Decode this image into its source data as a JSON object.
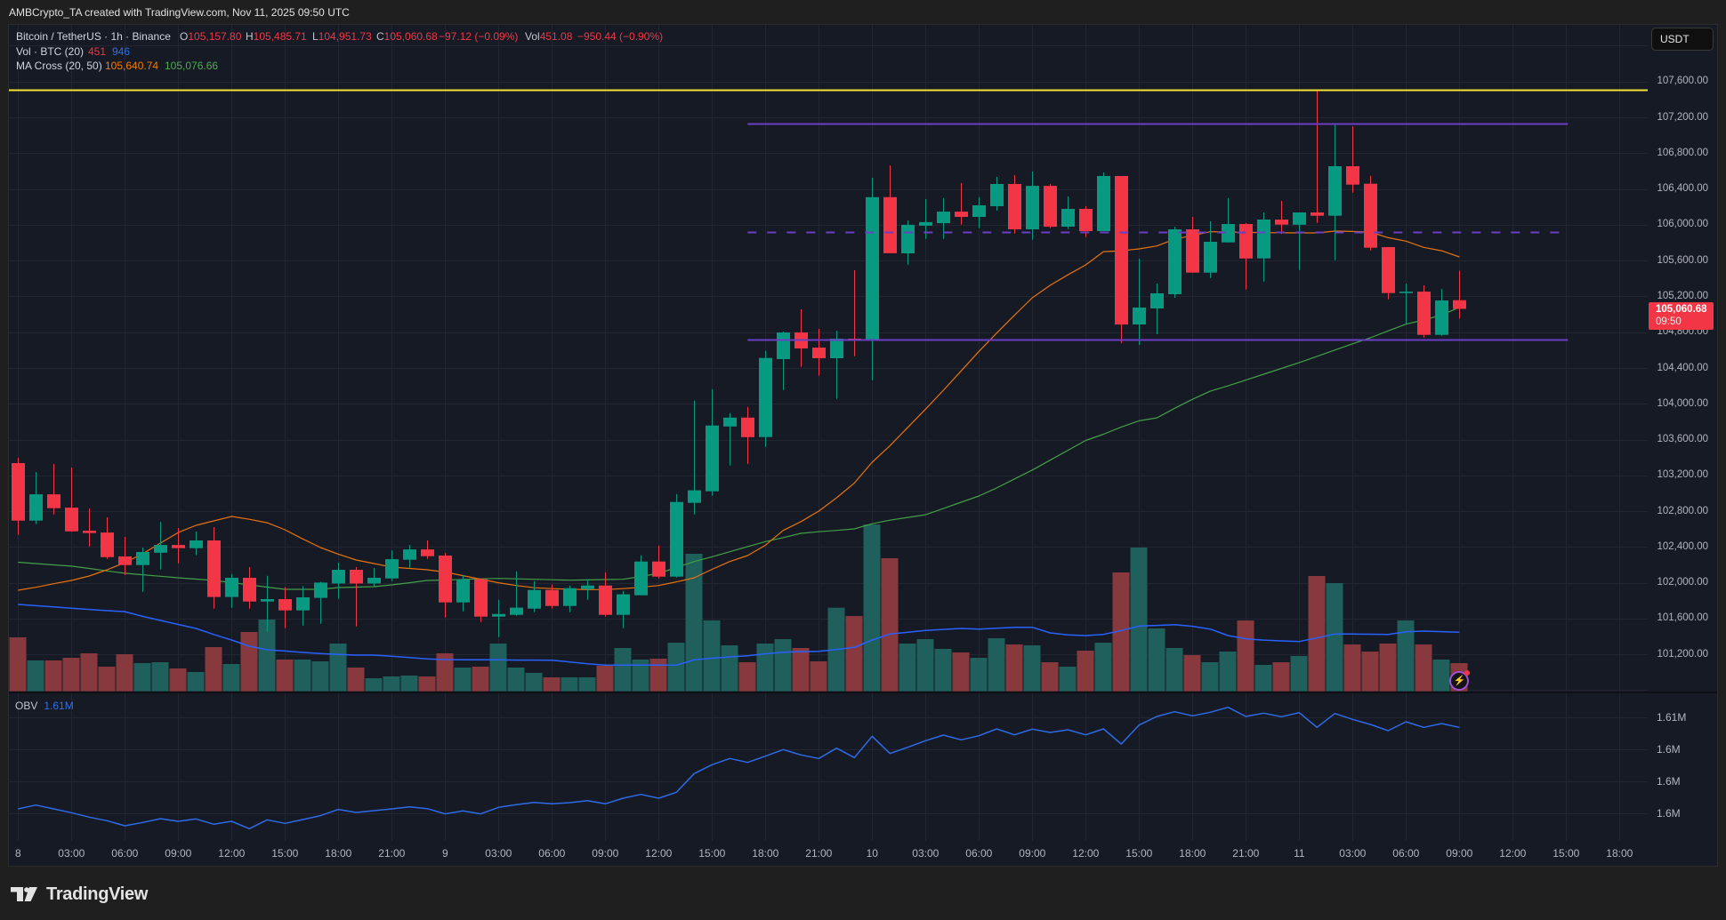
{
  "header": {
    "attribution": "AMBCrypto_TA created with TradingView.com, Nov 11, 2025 09:50 UTC"
  },
  "legend": {
    "symbol": "Bitcoin / TetherUS · 1h · Binance",
    "ohlc": {
      "o_label": "O",
      "o": "105,157.80",
      "h_label": "H",
      "h": "105,485.71",
      "l_label": "L",
      "l": "104,951.73",
      "c_label": "C",
      "c": "105,060.68",
      "change": "−97.12 (−0.09%)",
      "vol_label": "Vol",
      "vol": "451.08",
      "vol_change": "−950.44 (−0.90%)"
    },
    "volume": {
      "label": "Vol · BTC (20)",
      "value": "451",
      "ma": "946"
    },
    "ma_cross": {
      "label": "MA Cross (20, 50)",
      "ma20": "105,640.74",
      "ma50": "105,076.66"
    }
  },
  "price_axis": {
    "currency_button": "USDT",
    "last_price": "105,060.68",
    "countdown": "09:50"
  },
  "obv": {
    "label": "OBV",
    "value": "1.61M"
  },
  "status_icon": {
    "glyph": "⚡"
  },
  "footer": {
    "logo_text": "TradingView"
  },
  "colors": {
    "up": "#089981",
    "down": "#f23645",
    "vol_up": "#1f5f5c",
    "vol_down": "#87393d",
    "ma20": "#e8730c",
    "ma50": "#43a047",
    "vol_ma": "#2962ff",
    "obv": "#2f6be6",
    "grid": "#232632",
    "chart_bg": "#161a25",
    "page_bg": "#1f1f1f",
    "last_price_tag": "#f23645"
  },
  "chart_data": {
    "type": "candlestick",
    "title": "Bitcoin / TetherUS · 1h · Binance",
    "interval": "1h",
    "xlim": [
      -0.5,
      91.6
    ],
    "x_tick_every": 3,
    "x_tick_labels": [
      "8",
      "03:00",
      "06:00",
      "09:00",
      "12:00",
      "15:00",
      "18:00",
      "21:00",
      "9",
      "03:00",
      "06:00",
      "09:00",
      "12:00",
      "15:00",
      "18:00",
      "21:00",
      "10",
      "03:00",
      "06:00",
      "09:00",
      "12:00",
      "15:00",
      "18:00",
      "21:00",
      "11",
      "03:00",
      "06:00",
      "09:00",
      "12:00",
      "15:00",
      "18:00"
    ],
    "y_tick_labels": [
      "107,600.00",
      "107,200.00",
      "106,800.00",
      "106,400.00",
      "106,000.00",
      "105,600.00",
      "105,200.00",
      "104,800.00",
      "104,400.00",
      "104,000.00",
      "103,600.00",
      "103,200.00",
      "102,800.00",
      "102,400.00",
      "102,000.00",
      "101,600.00",
      "101,200.00"
    ],
    "price_pane": {
      "ylim": [
        100775,
        108233
      ],
      "grid_step": 400,
      "last_price": 105060.68,
      "ohlc_order": [
        "open",
        "high",
        "low",
        "close"
      ],
      "ohlc": [
        [
          103337,
          103397,
          102535,
          102694
        ],
        [
          102695,
          103238,
          102655,
          102989
        ],
        [
          102989,
          103327,
          102764,
          102834
        ],
        [
          102840,
          103287,
          102570,
          102575
        ],
        [
          102582,
          102830,
          102407,
          102555
        ],
        [
          102562,
          102731,
          102268,
          102287
        ],
        [
          102294,
          102513,
          102089,
          102198
        ],
        [
          102198,
          102393,
          101900,
          102344
        ],
        [
          102337,
          102681,
          102149,
          102423
        ],
        [
          102423,
          102612,
          102218,
          102387
        ],
        [
          102387,
          102572,
          102308,
          102473
        ],
        [
          102473,
          102622,
          101711,
          101841
        ],
        [
          101841,
          102099,
          101721,
          102056
        ],
        [
          102056,
          102175,
          101711,
          101791
        ],
        [
          101791,
          102079,
          101453,
          101818
        ],
        [
          101818,
          101953,
          101493,
          101692
        ],
        [
          101692,
          101963,
          101523,
          101838
        ],
        [
          101831,
          102012,
          101543,
          102002
        ],
        [
          101992,
          102225,
          101821,
          102145
        ],
        [
          102145,
          102175,
          101513,
          101992
        ],
        [
          101992,
          102165,
          101963,
          102056
        ],
        [
          102049,
          102363,
          102019,
          102264
        ],
        [
          102258,
          102423,
          102169,
          102373
        ],
        [
          102373,
          102473,
          102268,
          102298
        ],
        [
          102304,
          102334,
          101612,
          101781
        ],
        [
          101781,
          102089,
          101682,
          102039
        ],
        [
          102039,
          102049,
          101562,
          101622
        ],
        [
          101622,
          101811,
          101394,
          101652
        ],
        [
          101642,
          102129,
          101632,
          101722
        ],
        [
          101711,
          102019,
          101672,
          101920
        ],
        [
          101920,
          101980,
          101711,
          101741
        ],
        [
          101741,
          101970,
          101672,
          101940
        ],
        [
          101930,
          102039,
          101811,
          101970
        ],
        [
          101970,
          102119,
          101622,
          101642
        ],
        [
          101642,
          101910,
          101493,
          101871
        ],
        [
          101861,
          102308,
          101861,
          102238
        ],
        [
          102238,
          102417,
          102049,
          102069
        ],
        [
          102069,
          102993,
          102059,
          102903
        ],
        [
          102893,
          104035,
          102764,
          103033
        ],
        [
          103022,
          104164,
          102973,
          103757
        ],
        [
          103747,
          103896,
          103310,
          103846
        ],
        [
          103846,
          103966,
          103330,
          103628
        ],
        [
          103628,
          104591,
          103519,
          104512
        ],
        [
          104499,
          104807,
          104154,
          104797
        ],
        [
          104797,
          105055,
          104413,
          104618
        ],
        [
          104628,
          104837,
          104313,
          104509
        ],
        [
          104509,
          104817,
          104055,
          104727
        ],
        [
          104727,
          105492,
          104532,
          104717
        ],
        [
          104717,
          106525,
          104264,
          106308
        ],
        [
          106308,
          106664,
          105681,
          105681
        ],
        [
          105681,
          106049,
          105554,
          106000
        ],
        [
          105989,
          106287,
          105842,
          106029
        ],
        [
          106018,
          106297,
          105842,
          106147
        ],
        [
          106147,
          106466,
          106001,
          106088
        ],
        [
          106088,
          106307,
          105962,
          106217
        ],
        [
          106207,
          106535,
          106157,
          106455
        ],
        [
          106455,
          106555,
          105902,
          105949
        ],
        [
          105949,
          106594,
          105833,
          106435
        ],
        [
          106435,
          106455,
          105962,
          105978
        ],
        [
          105978,
          106316,
          105952,
          106177
        ],
        [
          106177,
          106207,
          105862,
          105929
        ],
        [
          105929,
          106584,
          105929,
          106545
        ],
        [
          106545,
          106545,
          104677,
          104886
        ],
        [
          104886,
          105621,
          104657,
          105075
        ],
        [
          105065,
          105343,
          104777,
          105234
        ],
        [
          105224,
          105978,
          105184,
          105949
        ],
        [
          105949,
          106088,
          105465,
          105465
        ],
        [
          105465,
          106038,
          105405,
          105810
        ],
        [
          105803,
          106297,
          105803,
          106009
        ],
        [
          106009,
          106019,
          105276,
          105624
        ],
        [
          105624,
          106138,
          105366,
          106058
        ],
        [
          106058,
          106267,
          105896,
          106001
        ],
        [
          106001,
          106138,
          105495,
          106138
        ],
        [
          106138,
          107500,
          106021,
          106101
        ],
        [
          106101,
          107130,
          105604,
          106654
        ],
        [
          106654,
          107100,
          106359,
          106448
        ],
        [
          106458,
          106547,
          105713,
          105743
        ],
        [
          105750,
          105750,
          105167,
          105237
        ],
        [
          105237,
          105343,
          104889,
          105253
        ],
        [
          105253,
          105323,
          104740,
          104770
        ],
        [
          104770,
          105283,
          104760,
          105154
        ],
        [
          105157.8,
          105485.71,
          104951.73,
          105060.68
        ]
      ],
      "ma20": [
        101917,
        101950,
        101990,
        102026,
        102076,
        102145,
        102225,
        102324,
        102443,
        102562,
        102642,
        102692,
        102741,
        102710,
        102671,
        102592,
        102490,
        102394,
        102320,
        102255,
        102215,
        102175,
        102160,
        102145,
        102120,
        102080,
        102040,
        102000,
        101970,
        101945,
        101935,
        101928,
        101924,
        101924,
        101935,
        101950,
        101970,
        102010,
        102056,
        102150,
        102238,
        102304,
        102420,
        102585,
        102684,
        102801,
        102950,
        103115,
        103347,
        103532,
        103736,
        103940,
        104150,
        104367,
        104585,
        104790,
        104990,
        105184,
        105323,
        105440,
        105552,
        105700,
        105710,
        105730,
        105763,
        105839,
        105880,
        105922,
        105920,
        105915,
        105912,
        105910,
        105909,
        105909,
        105929,
        105925,
        105919,
        105856,
        105817,
        105747,
        105710,
        105640.74
      ],
      "ma50": [
        102230,
        102215,
        102200,
        102186,
        102160,
        102133,
        102107,
        102090,
        102073,
        102056,
        102041,
        102026,
        102002,
        101977,
        101952,
        101927,
        101927,
        101927,
        101947,
        101952,
        101957,
        101977,
        102000,
        102026,
        102030,
        102038,
        102044,
        102049,
        102044,
        102039,
        102034,
        102029,
        102032,
        102036,
        102039,
        102070,
        102106,
        102170,
        102238,
        102290,
        102347,
        102405,
        102460,
        102505,
        102553,
        102570,
        102585,
        102602,
        102660,
        102700,
        102730,
        102760,
        102830,
        102900,
        102970,
        103060,
        103160,
        103260,
        103370,
        103480,
        103590,
        103660,
        103740,
        103810,
        103843,
        103950,
        104050,
        104141,
        104200,
        104265,
        104330,
        104395,
        104460,
        104530,
        104600,
        104670,
        104737,
        104815,
        104889,
        104936,
        104992,
        105076.66
      ]
    },
    "volume": {
      "unit": "BTC",
      "values": [
        864,
        494,
        494,
        536,
        608,
        394,
        593,
        451,
        465,
        366,
        309,
        707,
        437,
        949,
        1148,
        508,
        508,
        480,
        764,
        380,
        209,
        238,
        252,
        238,
        608,
        380,
        394,
        764,
        380,
        295,
        223,
        223,
        223,
        408,
        693,
        508,
        522,
        778,
        2201,
        1134,
        736,
        465,
        764,
        835,
        693,
        480,
        1338,
        1205,
        2671,
        2130,
        764,
        835,
        679,
        622,
        536,
        850,
        750,
        736,
        465,
        394,
        650,
        778,
        1903,
        2301,
        1006,
        693,
        579,
        465,
        636,
        1134,
        423,
        465,
        565,
        1846,
        1732,
        750,
        636,
        764,
        1134,
        750,
        508,
        451.08
      ],
      "ma20": [
        1390,
        1370,
        1350,
        1330,
        1310,
        1290,
        1275,
        1200,
        1134,
        1070,
        1006,
        910,
        821,
        721,
        665,
        645,
        622,
        605,
        590,
        579,
        579,
        560,
        540,
        520,
        508,
        505,
        504,
        504,
        500,
        499,
        498,
        470,
        440,
        418,
        418,
        418,
        418,
        418,
        504,
        530,
        550,
        569,
        600,
        626,
        635,
        640,
        670,
        703,
        821,
        916,
        945,
        973,
        990,
        1006,
        996,
        1010,
        1025,
        1025,
        935,
        902,
        892,
        911,
        973,
        1044,
        1055,
        1067,
        1040,
        996,
        892,
        840,
        820,
        807,
        797,
        854,
        916,
        916,
        913,
        911,
        953,
        963,
        955,
        946
      ]
    },
    "obv_pane": {
      "ylim": [
        1596590,
        1615033
      ],
      "grid_values": [
        1612000,
        1608000,
        1604000,
        1600000
      ],
      "tick_labels": [
        "1.61M",
        "1.6M",
        "1.6M",
        "1.6M"
      ],
      "values": [
        1600591,
        1601072,
        1600591,
        1600110,
        1599555,
        1599110,
        1598481,
        1598888,
        1599370,
        1599036,
        1599333,
        1598666,
        1599036,
        1598111,
        1599222,
        1598777,
        1599259,
        1599740,
        1600518,
        1600147,
        1600369,
        1600591,
        1600850,
        1600628,
        1599962,
        1600333,
        1599962,
        1600776,
        1601110,
        1601406,
        1601221,
        1601369,
        1601628,
        1601221,
        1601925,
        1602406,
        1601925,
        1602665,
        1604998,
        1606109,
        1606887,
        1606405,
        1607183,
        1607998,
        1607331,
        1606887,
        1608183,
        1606998,
        1609664,
        1607516,
        1608294,
        1609109,
        1609812,
        1609219,
        1609738,
        1610589,
        1609849,
        1610553,
        1610145,
        1610478,
        1609849,
        1610589,
        1608701,
        1611071,
        1612145,
        1612737,
        1612219,
        1612663,
        1613293,
        1612145,
        1612552,
        1612108,
        1612626,
        1610774,
        1612515,
        1611774,
        1611144,
        1610367,
        1611478,
        1610774,
        1611256,
        1610774
      ]
    },
    "drawings": [
      {
        "type": "horizontal_line",
        "price": 107505,
        "color": "#f5e133",
        "style": "solid",
        "width": 2,
        "from_idx": null,
        "to_idx": null
      },
      {
        "type": "trend_line",
        "price": 107130,
        "color": "#6a3fc4",
        "style": "solid",
        "width": 2,
        "from_idx": 41,
        "to_idx": 87.1
      },
      {
        "type": "trend_line",
        "price": 105920,
        "color": "#6a3fc4",
        "style": "dashed",
        "width": 2,
        "from_idx": 41,
        "to_idx": 86.6
      },
      {
        "type": "trend_line",
        "price": 104715,
        "color": "#6a3fc4",
        "style": "solid",
        "width": 2,
        "from_idx": 41,
        "to_idx": 87.1
      }
    ]
  }
}
